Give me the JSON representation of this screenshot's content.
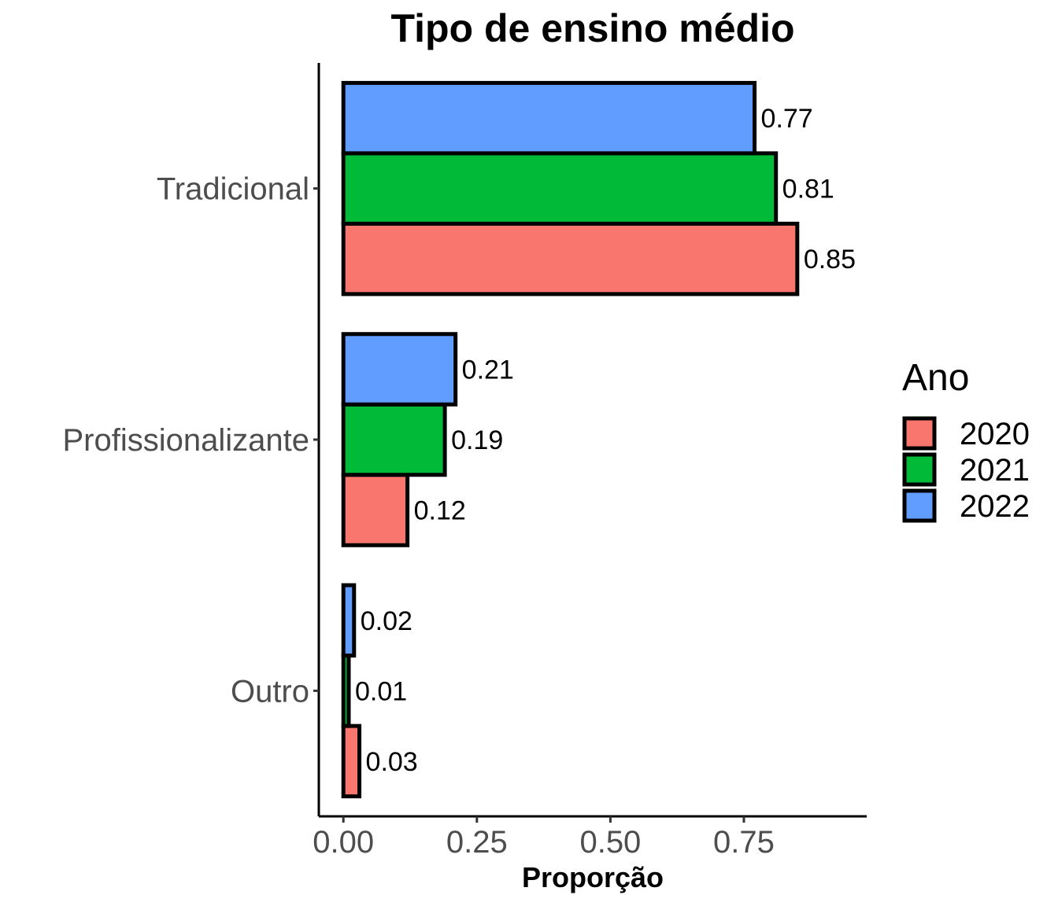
{
  "chart_data": {
    "type": "bar",
    "orientation": "horizontal",
    "title": "Tipo de ensino médio",
    "xlabel": "Proporção",
    "ylabel": "",
    "categories": [
      "Tradicional",
      "Profissionalizante",
      "Outro"
    ],
    "series": [
      {
        "name": "2020",
        "color": "#F8766D",
        "values": [
          0.85,
          0.12,
          0.03
        ],
        "labels": [
          "0.85",
          "0.12",
          "0.03"
        ]
      },
      {
        "name": "2021",
        "color": "#00BA38",
        "values": [
          0.81,
          0.19,
          0.01
        ],
        "labels": [
          "0.81",
          "0.19",
          "0.01"
        ]
      },
      {
        "name": "2022",
        "color": "#619CFF",
        "values": [
          0.77,
          0.21,
          0.02
        ],
        "labels": [
          "0.77",
          "0.21",
          "0.02"
        ]
      }
    ],
    "xlim": [
      -0.046,
      0.98
    ],
    "xticks": [
      0,
      0.25,
      0.5,
      0.75
    ],
    "xtick_labels": [
      "0.00",
      "0.25",
      "0.50",
      "0.75"
    ],
    "grid": false,
    "legend": {
      "title": "Ano",
      "position": "right"
    }
  }
}
